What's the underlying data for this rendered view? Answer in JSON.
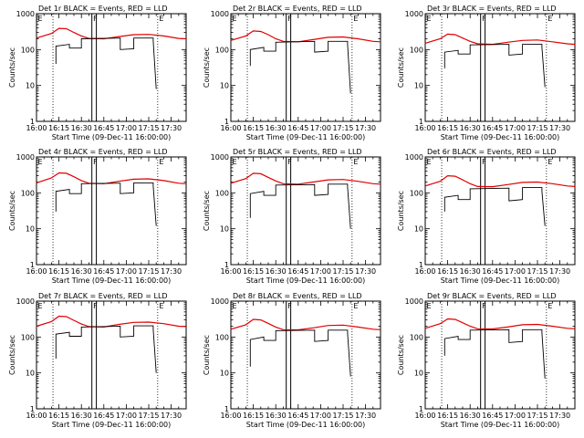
{
  "figure": {
    "xtick_labels": [
      "16:00",
      "16:15",
      "16:30",
      "16:45",
      "17:00",
      "17:15",
      "17:30"
    ],
    "xlabel": "Start Time (09-Dec-11 16:00:00)",
    "ylabel": "Counts/sec",
    "ytick_labels": [
      "1",
      "10",
      "100",
      "1000"
    ],
    "marker_labels": [
      "E",
      "F",
      "E"
    ],
    "black_color": "#000000",
    "red_color": "#e00000"
  },
  "chart_data": [
    {
      "type": "line",
      "title": "Det 1r BLACK = Events, RED = LLD",
      "xlim": [
        "16:00",
        "17:40"
      ],
      "ylim": [
        1,
        1000
      ],
      "yscale": "log",
      "grid": false,
      "markers": {
        "dotted": [
          "16:11",
          "17:21"
        ],
        "solid": [
          "16:37",
          "16:40"
        ]
      },
      "series": [
        {
          "color": "red",
          "x": [
            "16:00",
            "16:10",
            "16:15",
            "16:20",
            "16:25",
            "16:30",
            "16:35",
            "16:45",
            "16:55",
            "17:05",
            "17:15",
            "17:25",
            "17:35",
            "17:40"
          ],
          "y": [
            210,
            280,
            390,
            380,
            300,
            240,
            205,
            200,
            230,
            260,
            265,
            240,
            205,
            200
          ]
        },
        {
          "color": "black",
          "x": [
            "16:13",
            "16:13",
            "16:22",
            "16:22",
            "16:30",
            "16:30",
            "16:56",
            "16:56",
            "17:05",
            "17:05",
            "17:18",
            "17:18",
            "17:20"
          ],
          "y": [
            40,
            125,
            140,
            110,
            110,
            200,
            210,
            100,
            105,
            210,
            210,
            175,
            8
          ]
        }
      ]
    },
    {
      "type": "line",
      "title": "Det 2r BLACK = Events, RED = LLD",
      "xlim": [
        "16:00",
        "17:40"
      ],
      "ylim": [
        1,
        1000
      ],
      "yscale": "log",
      "grid": false,
      "markers": {
        "dotted": [
          "16:11",
          "17:21"
        ],
        "solid": [
          "16:37",
          "16:40"
        ]
      },
      "series": [
        {
          "color": "red",
          "x": [
            "16:00",
            "16:10",
            "16:15",
            "16:20",
            "16:25",
            "16:30",
            "16:35",
            "16:45",
            "16:55",
            "17:05",
            "17:15",
            "17:25",
            "17:35",
            "17:40"
          ],
          "y": [
            180,
            240,
            330,
            320,
            260,
            200,
            170,
            165,
            190,
            220,
            225,
            200,
            170,
            165
          ]
        },
        {
          "color": "black",
          "x": [
            "16:13",
            "16:13",
            "16:22",
            "16:22",
            "16:30",
            "16:30",
            "16:56",
            "16:56",
            "17:05",
            "17:05",
            "17:18",
            "17:18",
            "17:20"
          ],
          "y": [
            35,
            100,
            115,
            90,
            90,
            160,
            170,
            85,
            90,
            170,
            170,
            140,
            6
          ]
        }
      ]
    },
    {
      "type": "line",
      "title": "Det 3r BLACK = Events, RED = LLD",
      "xlim": [
        "16:00",
        "17:40"
      ],
      "ylim": [
        1,
        1000
      ],
      "yscale": "log",
      "grid": false,
      "markers": {
        "dotted": [
          "16:11",
          "17:21"
        ],
        "solid": [
          "16:37",
          "16:40"
        ]
      },
      "series": [
        {
          "color": "red",
          "x": [
            "16:00",
            "16:10",
            "16:15",
            "16:20",
            "16:25",
            "16:30",
            "16:35",
            "16:45",
            "16:55",
            "17:05",
            "17:15",
            "17:25",
            "17:35",
            "17:40"
          ],
          "y": [
            150,
            200,
            270,
            260,
            210,
            170,
            145,
            140,
            160,
            180,
            185,
            165,
            145,
            140
          ]
        },
        {
          "color": "black",
          "x": [
            "16:13",
            "16:13",
            "16:22",
            "16:22",
            "16:30",
            "16:30",
            "16:56",
            "16:56",
            "17:05",
            "17:05",
            "17:18",
            "17:18",
            "17:20"
          ],
          "y": [
            30,
            85,
            95,
            75,
            75,
            135,
            140,
            70,
            75,
            140,
            140,
            115,
            9
          ]
        }
      ]
    },
    {
      "type": "line",
      "title": "Det 4r BLACK = Events, RED = LLD",
      "xlim": [
        "16:00",
        "17:40"
      ],
      "ylim": [
        1,
        1000
      ],
      "yscale": "log",
      "grid": false,
      "markers": {
        "dotted": [
          "16:11",
          "17:21"
        ],
        "solid": [
          "16:37",
          "16:40"
        ]
      },
      "series": [
        {
          "color": "red",
          "x": [
            "16:00",
            "16:10",
            "16:15",
            "16:20",
            "16:25",
            "16:30",
            "16:35",
            "16:45",
            "16:55",
            "17:05",
            "17:15",
            "17:25",
            "17:35",
            "17:40"
          ],
          "y": [
            190,
            260,
            360,
            350,
            280,
            220,
            185,
            180,
            210,
            240,
            245,
            220,
            185,
            180
          ]
        },
        {
          "color": "black",
          "x": [
            "16:13",
            "16:13",
            "16:22",
            "16:22",
            "16:30",
            "16:30",
            "16:56",
            "16:56",
            "17:05",
            "17:05",
            "17:18",
            "17:18",
            "17:20"
          ],
          "y": [
            30,
            110,
            125,
            95,
            95,
            180,
            185,
            95,
            100,
            190,
            190,
            155,
            12
          ]
        }
      ]
    },
    {
      "type": "line",
      "title": "Det 5r BLACK = Events, RED = LLD",
      "xlim": [
        "16:00",
        "17:40"
      ],
      "ylim": [
        1,
        1000
      ],
      "yscale": "log",
      "grid": false,
      "markers": {
        "dotted": [
          "16:11",
          "17:21"
        ],
        "solid": [
          "16:37",
          "16:40"
        ]
      },
      "series": [
        {
          "color": "red",
          "x": [
            "16:00",
            "16:10",
            "16:15",
            "16:20",
            "16:25",
            "16:30",
            "16:35",
            "16:45",
            "16:55",
            "17:05",
            "17:15",
            "17:25",
            "17:35",
            "17:40"
          ],
          "y": [
            185,
            250,
            350,
            340,
            270,
            215,
            180,
            175,
            200,
            230,
            235,
            210,
            180,
            175
          ]
        },
        {
          "color": "black",
          "x": [
            "16:13",
            "16:13",
            "16:22",
            "16:22",
            "16:30",
            "16:30",
            "16:56",
            "16:56",
            "17:05",
            "17:05",
            "17:18",
            "17:18",
            "17:20"
          ],
          "y": [
            20,
            95,
            110,
            85,
            85,
            165,
            170,
            85,
            90,
            175,
            175,
            145,
            10
          ]
        }
      ]
    },
    {
      "type": "line",
      "title": "Det 6r BLACK = Events, RED = LLD",
      "xlim": [
        "16:00",
        "17:40"
      ],
      "ylim": [
        1,
        1000
      ],
      "yscale": "log",
      "grid": false,
      "markers": {
        "dotted": [
          "16:11",
          "17:21"
        ],
        "solid": [
          "16:37",
          "16:40"
        ]
      },
      "series": [
        {
          "color": "red",
          "x": [
            "16:00",
            "16:10",
            "16:15",
            "16:20",
            "16:25",
            "16:30",
            "16:35",
            "16:45",
            "16:55",
            "17:05",
            "17:15",
            "17:25",
            "17:35",
            "17:40"
          ],
          "y": [
            155,
            210,
            300,
            290,
            230,
            180,
            150,
            148,
            170,
            195,
            200,
            180,
            155,
            150
          ]
        },
        {
          "color": "black",
          "x": [
            "16:13",
            "16:13",
            "16:22",
            "16:22",
            "16:30",
            "16:30",
            "16:56",
            "16:56",
            "17:05",
            "17:05",
            "17:18",
            "17:18",
            "17:20"
          ],
          "y": [
            30,
            75,
            85,
            65,
            65,
            130,
            135,
            60,
            65,
            140,
            140,
            110,
            12
          ]
        }
      ]
    },
    {
      "type": "line",
      "title": "Det 7r BLACK = Events, RED = LLD",
      "xlim": [
        "16:00",
        "17:40"
      ],
      "ylim": [
        1,
        1000
      ],
      "yscale": "log",
      "grid": false,
      "markers": {
        "dotted": [
          "16:11",
          "17:21"
        ],
        "solid": [
          "16:37",
          "16:40"
        ]
      },
      "series": [
        {
          "color": "red",
          "x": [
            "16:00",
            "16:10",
            "16:15",
            "16:20",
            "16:25",
            "16:30",
            "16:35",
            "16:45",
            "16:55",
            "17:05",
            "17:15",
            "17:25",
            "17:35",
            "17:40"
          ],
          "y": [
            200,
            270,
            380,
            370,
            290,
            230,
            195,
            190,
            225,
            255,
            260,
            235,
            200,
            195
          ]
        },
        {
          "color": "black",
          "x": [
            "16:13",
            "16:13",
            "16:22",
            "16:22",
            "16:30",
            "16:30",
            "16:56",
            "16:56",
            "17:05",
            "17:05",
            "17:18",
            "17:18",
            "17:20"
          ],
          "y": [
            25,
            120,
            135,
            105,
            105,
            190,
            200,
            100,
            105,
            205,
            205,
            165,
            10
          ]
        }
      ]
    },
    {
      "type": "line",
      "title": "Det 8r BLACK = Events, RED = LLD",
      "xlim": [
        "16:00",
        "17:40"
      ],
      "ylim": [
        1,
        1000
      ],
      "yscale": "log",
      "grid": false,
      "markers": {
        "dotted": [
          "16:11",
          "17:21"
        ],
        "solid": [
          "16:37",
          "16:40"
        ]
      },
      "series": [
        {
          "color": "red",
          "x": [
            "16:00",
            "16:10",
            "16:15",
            "16:20",
            "16:25",
            "16:30",
            "16:35",
            "16:45",
            "16:55",
            "17:05",
            "17:15",
            "17:25",
            "17:35",
            "17:40"
          ],
          "y": [
            165,
            220,
            310,
            300,
            240,
            190,
            160,
            158,
            180,
            210,
            215,
            190,
            165,
            160
          ]
        },
        {
          "color": "black",
          "x": [
            "16:13",
            "16:13",
            "16:22",
            "16:22",
            "16:30",
            "16:30",
            "16:56",
            "16:56",
            "17:05",
            "17:05",
            "17:18",
            "17:18",
            "17:20"
          ],
          "y": [
            15,
            85,
            100,
            80,
            80,
            150,
            155,
            75,
            80,
            155,
            155,
            125,
            8
          ]
        }
      ]
    },
    {
      "type": "line",
      "title": "Det 9r BLACK = Events, RED = LLD",
      "xlim": [
        "16:00",
        "17:40"
      ],
      "ylim": [
        1,
        1000
      ],
      "yscale": "log",
      "grid": false,
      "markers": {
        "dotted": [
          "16:11",
          "17:21"
        ],
        "solid": [
          "16:37",
          "16:40"
        ]
      },
      "series": [
        {
          "color": "red",
          "x": [
            "16:00",
            "16:10",
            "16:15",
            "16:20",
            "16:25",
            "16:30",
            "16:35",
            "16:45",
            "16:55",
            "17:05",
            "17:15",
            "17:25",
            "17:35",
            "17:40"
          ],
          "y": [
            175,
            235,
            320,
            310,
            250,
            200,
            170,
            168,
            190,
            220,
            225,
            200,
            175,
            170
          ]
        },
        {
          "color": "black",
          "x": [
            "16:13",
            "16:13",
            "16:22",
            "16:22",
            "16:30",
            "16:30",
            "16:56",
            "16:56",
            "17:05",
            "17:05",
            "17:18",
            "17:18",
            "17:20"
          ],
          "y": [
            30,
            90,
            105,
            85,
            85,
            155,
            160,
            70,
            75,
            160,
            160,
            130,
            7
          ]
        }
      ]
    }
  ]
}
